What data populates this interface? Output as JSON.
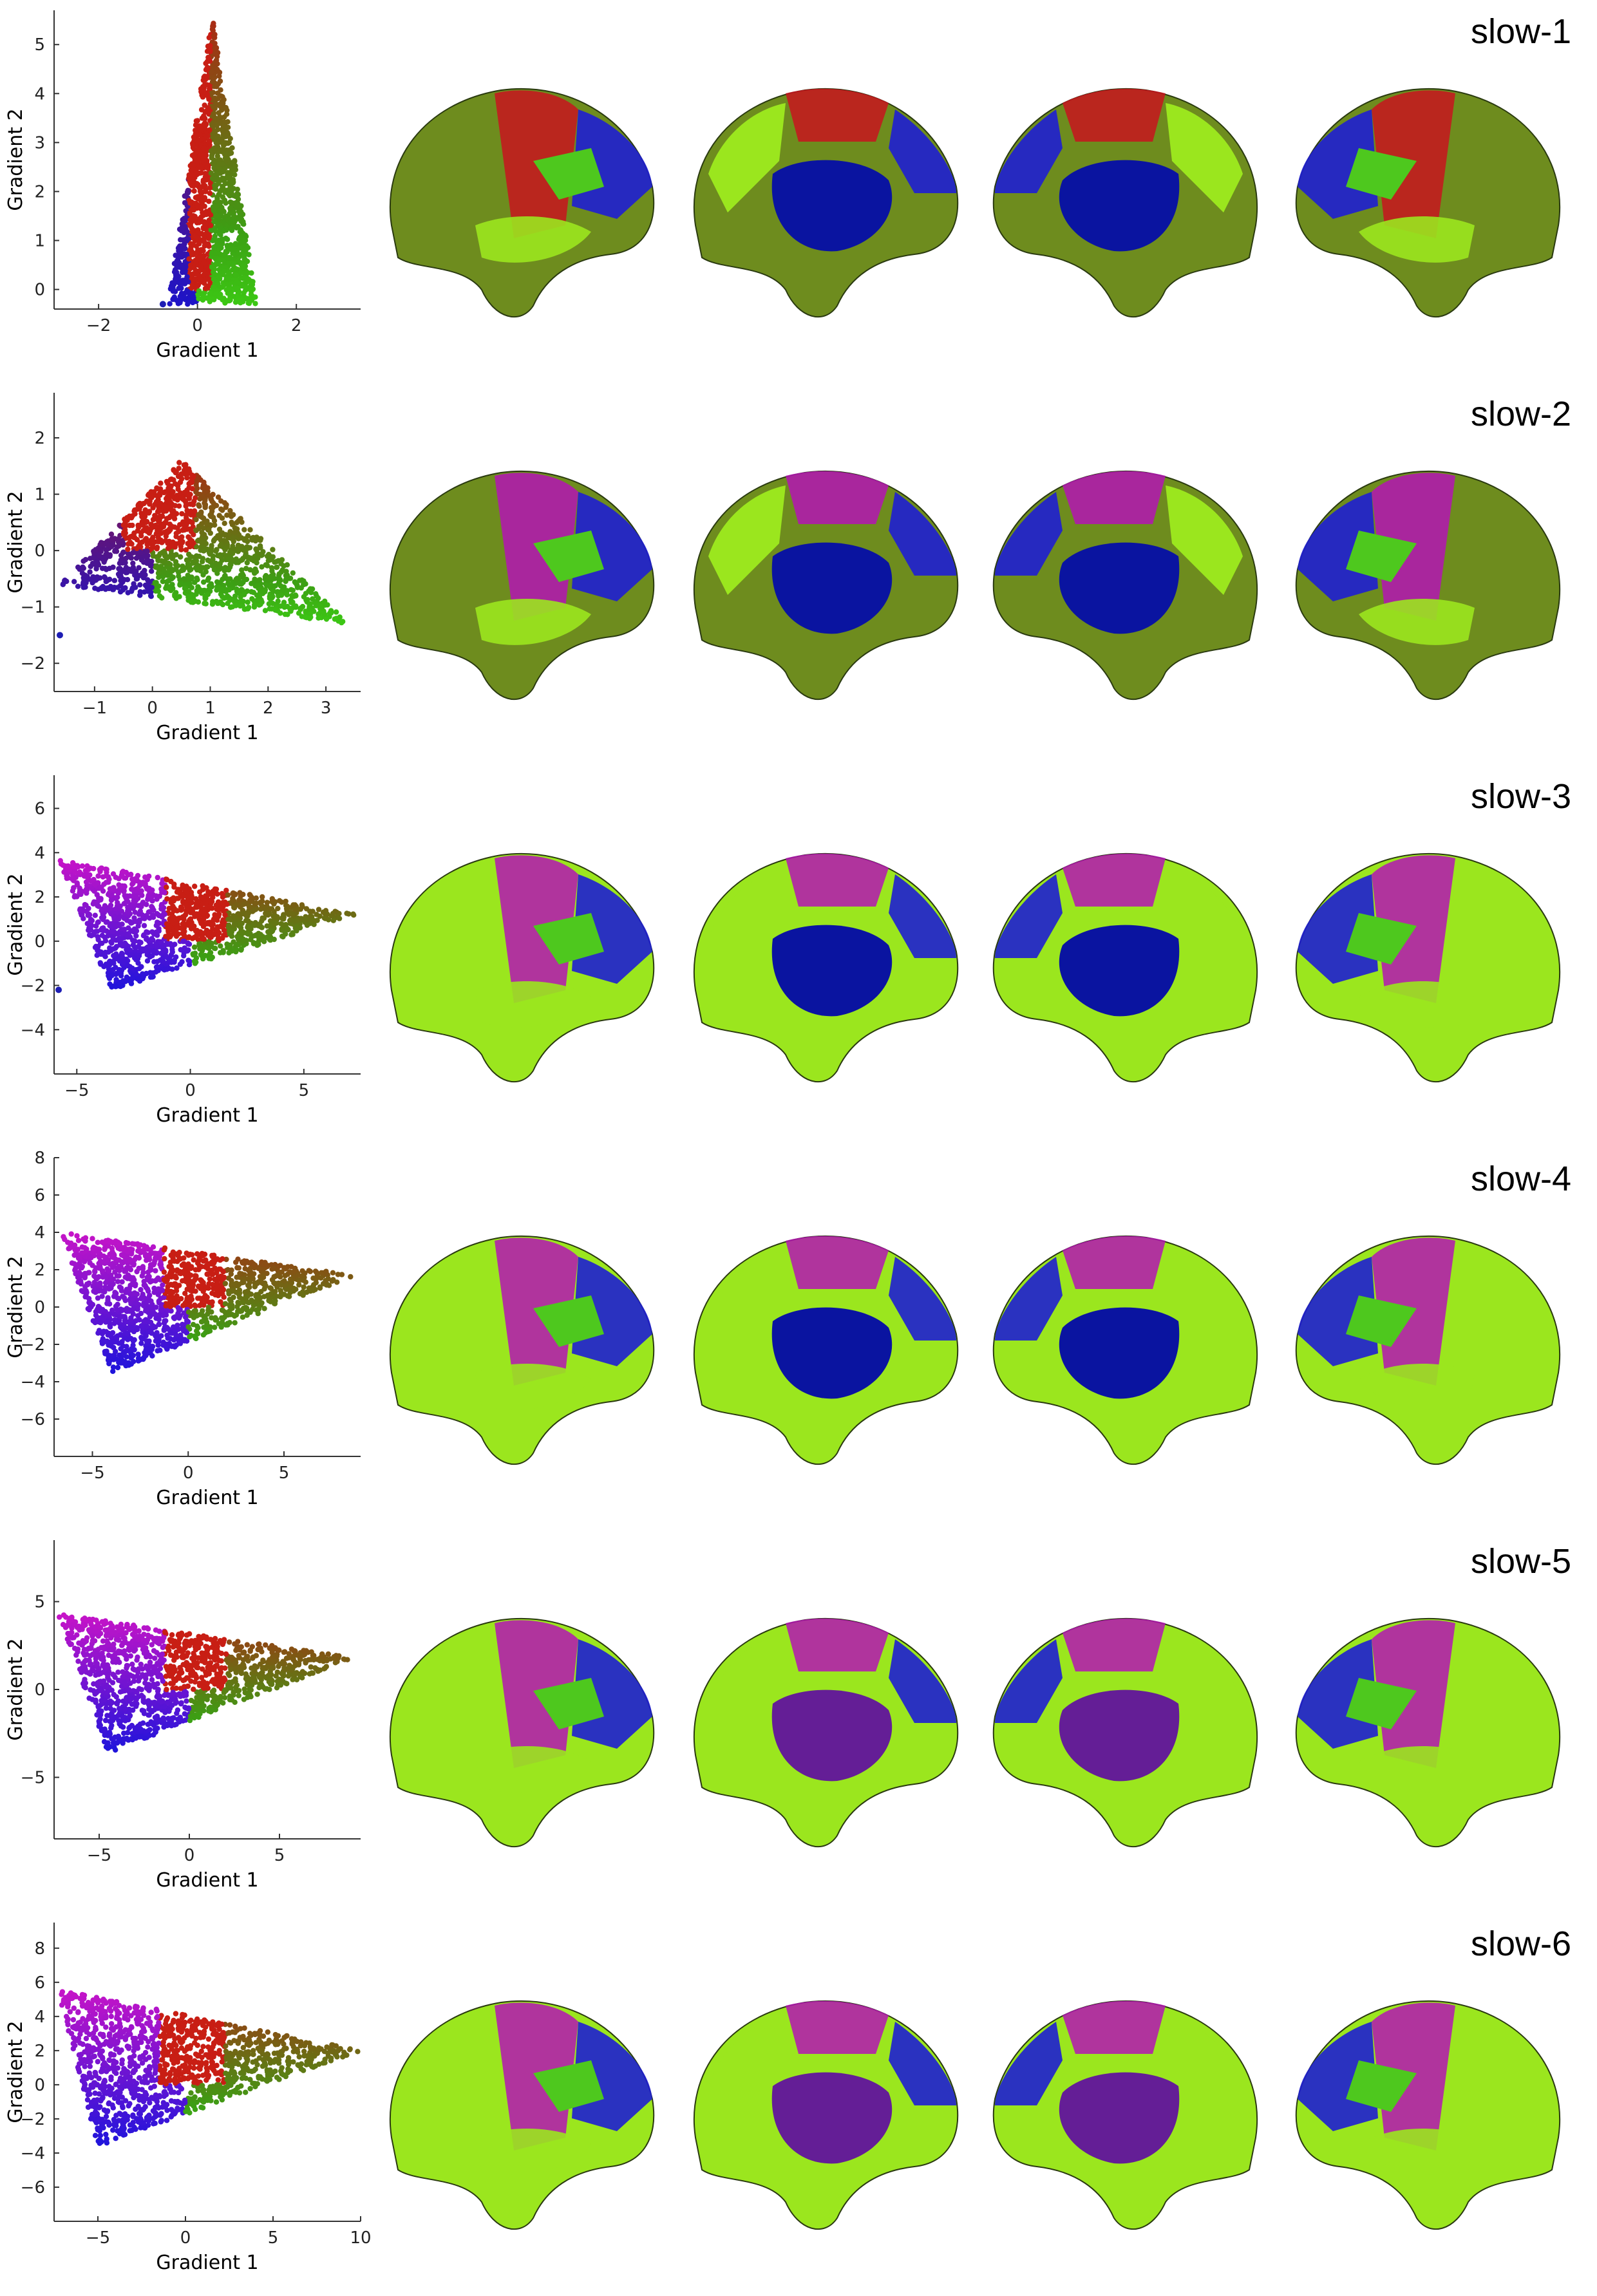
{
  "chart_data": [
    {
      "type": "scatter",
      "title": "slow-1",
      "xlabel": "Gradient 1",
      "ylabel": "Gradient 2",
      "xlim": [
        -2.9,
        3.3
      ],
      "ylim": [
        -0.4,
        5.7
      ],
      "xticks": [
        -2,
        0,
        2
      ],
      "yticks": [
        0,
        1,
        2,
        3,
        4,
        5
      ],
      "point_cloud": {
        "apex": [
          0.3,
          5.6
        ],
        "left": [
          -0.6,
          -0.3
        ],
        "right": [
          1.2,
          -0.3
        ],
        "base_y": -0.3,
        "outlier": [
          -0.7,
          -0.3
        ]
      },
      "color_mapping": {
        "positive_g2": "red",
        "negative_g1": "blue",
        "positive_g1": "green"
      }
    },
    {
      "type": "scatter",
      "title": "slow-2",
      "xlabel": "Gradient 1",
      "ylabel": "Gradient 2",
      "xlim": [
        -1.7,
        3.6
      ],
      "ylim": [
        -2.5,
        2.8
      ],
      "xticks": [
        -1,
        0,
        1,
        2,
        3
      ],
      "yticks": [
        -2,
        -1,
        0,
        1,
        2
      ],
      "point_cloud": {
        "apex": [
          0.5,
          1.6
        ],
        "left": [
          -1.6,
          -0.6
        ],
        "right": [
          3.4,
          -1.3
        ],
        "base_y": -1.3,
        "outlier": [
          -1.6,
          -1.5
        ]
      },
      "color_mapping": {
        "positive_g2": "red",
        "negative_g1": "blue",
        "positive_g1": "green"
      }
    },
    {
      "type": "scatter",
      "title": "slow-3",
      "xlabel": "Gradient 1",
      "ylabel": "Gradient 2",
      "xlim": [
        -6,
        7.5
      ],
      "ylim": [
        -6,
        7.5
      ],
      "xticks": [
        -5,
        0,
        5
      ],
      "yticks": [
        -4,
        -2,
        0,
        2,
        4,
        6
      ],
      "point_cloud": {
        "apex": [
          -5.8,
          3.7
        ],
        "left": [
          -3.5,
          -2.2
        ],
        "right": [
          7.4,
          1.2
        ],
        "base_y": -2.2,
        "outlier": [
          -5.8,
          -2.2
        ]
      },
      "color_mapping": {
        "positive_g2": "red",
        "negative_g1": "blue",
        "positive_g1": "green",
        "high_g2_negative_g1": "magenta"
      }
    },
    {
      "type": "scatter",
      "title": "slow-4",
      "xlabel": "Gradient 1",
      "ylabel": "Gradient 2",
      "xlim": [
        -7,
        9
      ],
      "ylim": [
        -8,
        8
      ],
      "xticks": [
        -5,
        0,
        5
      ],
      "yticks": [
        -6,
        -4,
        -2,
        0,
        2,
        4,
        6,
        8
      ],
      "point_cloud": {
        "apex": [
          -6.7,
          4.0
        ],
        "left": [
          -4.0,
          -3.5
        ],
        "right": [
          8.7,
          1.7
        ],
        "base_y": -3.5
      },
      "color_mapping": {
        "positive_g2": "red",
        "negative_g1": "blue",
        "positive_g1": "green",
        "high_g2_negative_g1": "magenta"
      }
    },
    {
      "type": "scatter",
      "title": "slow-5",
      "xlabel": "Gradient 1",
      "ylabel": "Gradient 2",
      "xlim": [
        -7.5,
        9.5
      ],
      "ylim": [
        -8.5,
        8.5
      ],
      "xticks": [
        -5,
        0,
        5
      ],
      "yticks": [
        -5,
        0,
        5
      ],
      "point_cloud": {
        "apex": [
          -7.3,
          4.3
        ],
        "left": [
          -4.5,
          -3.6
        ],
        "right": [
          9.2,
          1.8
        ],
        "base_y": -3.6
      },
      "color_mapping": {
        "positive_g2": "red",
        "negative_g1": "blue",
        "positive_g1": "green",
        "high_g2_negative_g1": "magenta"
      }
    },
    {
      "type": "scatter",
      "title": "slow-6",
      "xlabel": "Gradient 1",
      "ylabel": "Gradient 2",
      "xlim": [
        -7.5,
        10
      ],
      "ylim": [
        -8,
        9.5
      ],
      "xticks": [
        -5,
        0,
        5,
        10
      ],
      "yticks": [
        -6,
        -4,
        -2,
        0,
        2,
        4,
        6,
        8
      ],
      "point_cloud": {
        "apex": [
          -7.3,
          5.6
        ],
        "left": [
          -5.0,
          -3.6
        ],
        "right": [
          10,
          2.0
        ],
        "base_y": -3.6
      },
      "color_mapping": {
        "positive_g2": "red",
        "negative_g1": "blue",
        "positive_g1": "green",
        "high_g2_negative_g1": "magenta"
      }
    }
  ],
  "brain_panels": {
    "views": [
      "lateral-left",
      "medial-left",
      "medial-right",
      "lateral-right"
    ],
    "colors": {
      "red": "#c8141e",
      "blue": "#1e1ed2",
      "green": "#4ec81e",
      "lime": "#9be61e",
      "magenta": "#b414b4",
      "purple": "#641e96",
      "olive": "#6e8c1e"
    }
  }
}
